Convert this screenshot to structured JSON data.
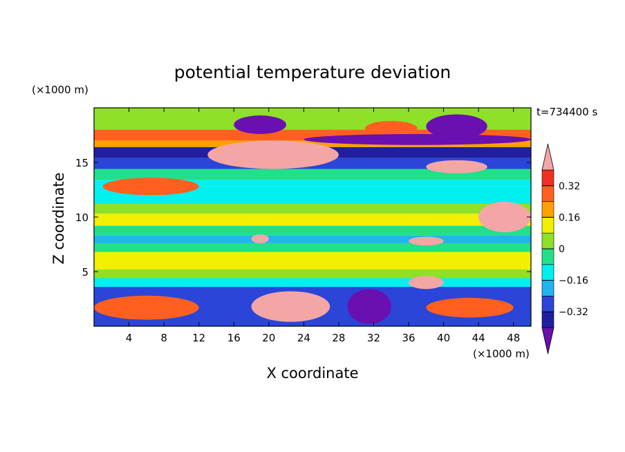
{
  "chart_data": {
    "type": "heatmap",
    "title": "potential temperature deviation",
    "xlabel": "X coordinate",
    "ylabel": "Z coordinate",
    "x_unit": "(×1000 m)",
    "y_unit": "(×1000 m)",
    "time_label": "t=734400 s",
    "xlim": [
      0,
      50
    ],
    "ylim": [
      0,
      20
    ],
    "x_ticks": [
      4,
      8,
      12,
      16,
      20,
      24,
      28,
      32,
      36,
      40,
      44,
      48
    ],
    "y_ticks": [
      5,
      10,
      15
    ],
    "colorbar": {
      "labels": [
        "0.32",
        "0.16",
        "0",
        "-0.16",
        "-0.32"
      ],
      "label_values": [
        0.32,
        0.16,
        0,
        -0.16,
        -0.32
      ],
      "levels": [
        -0.4,
        -0.32,
        -0.24,
        -0.16,
        -0.08,
        0,
        0.08,
        0.16,
        0.24,
        0.32,
        0.4
      ],
      "colors": [
        "#6a0fb0",
        "#1f1fa0",
        "#2a45d8",
        "#20b4f0",
        "#00f0f0",
        "#22e08a",
        "#8ee028",
        "#f0f000",
        "#ffa000",
        "#ff6020",
        "#f03020",
        "#f4a6a6"
      ]
    },
    "bands": [
      {
        "z": [
          18,
          20
        ],
        "v": 0.06
      },
      {
        "z": [
          17,
          18
        ],
        "v": 0.28
      },
      {
        "z": [
          16.4,
          17
        ],
        "v": 0.2
      },
      {
        "z": [
          15.4,
          16.4
        ],
        "v": -0.38
      },
      {
        "z": [
          14.4,
          15.4
        ],
        "v": -0.26
      },
      {
        "z": [
          13.4,
          14.4
        ],
        "v": -0.04
      },
      {
        "z": [
          12.8,
          13.4
        ],
        "v": -0.09
      },
      {
        "z": [
          11.2,
          12.8
        ],
        "v": -0.1
      },
      {
        "z": [
          10.3,
          11.2
        ],
        "v": 0.04
      },
      {
        "z": [
          9.2,
          10.3
        ],
        "v": 0.09
      },
      {
        "z": [
          8.3,
          9.2
        ],
        "v": -0.04
      },
      {
        "z": [
          7.6,
          8.3
        ],
        "v": -0.17
      },
      {
        "z": [
          6.8,
          7.6
        ],
        "v": -0.03
      },
      {
        "z": [
          5.2,
          6.8
        ],
        "v": 0.09
      },
      {
        "z": [
          4.4,
          5.2
        ],
        "v": 0.02
      },
      {
        "z": [
          3.6,
          4.4
        ],
        "v": -0.1
      },
      {
        "z": [
          0,
          3.6
        ],
        "v": -0.27
      }
    ],
    "features": [
      {
        "x": [
          13,
          28
        ],
        "z": [
          14.4,
          17.0
        ],
        "v": 0.42
      },
      {
        "x": [
          16,
          22
        ],
        "z": [
          17.6,
          19.3
        ],
        "v": -0.42
      },
      {
        "x": [
          31,
          37
        ],
        "z": [
          17.4,
          18.8
        ],
        "v": 0.3
      },
      {
        "x": [
          38,
          45
        ],
        "z": [
          17.2,
          19.4
        ],
        "v": -0.42
      },
      {
        "x": [
          24,
          50
        ],
        "z": [
          16.6,
          17.6
        ],
        "v": -0.42
      },
      {
        "x": [
          18,
          27
        ],
        "z": [
          0.4,
          3.2
        ],
        "v": 0.42
      },
      {
        "x": [
          29,
          34
        ],
        "z": [
          0.2,
          3.4
        ],
        "v": -0.42
      },
      {
        "x": [
          0,
          12
        ],
        "z": [
          0.6,
          2.8
        ],
        "v": 0.28
      },
      {
        "x": [
          38,
          48
        ],
        "z": [
          0.8,
          2.6
        ],
        "v": 0.3
      },
      {
        "x": [
          36,
          40
        ],
        "z": [
          3.4,
          4.6
        ],
        "v": 0.42
      },
      {
        "x": [
          38,
          45
        ],
        "z": [
          14.0,
          15.2
        ],
        "v": 0.42
      },
      {
        "x": [
          44,
          50
        ],
        "z": [
          8.6,
          11.4
        ],
        "v": 0.42
      },
      {
        "x": [
          18,
          20
        ],
        "z": [
          7.6,
          8.4
        ],
        "v": 0.42
      },
      {
        "x": [
          36,
          40
        ],
        "z": [
          7.4,
          8.2
        ],
        "v": 0.42
      },
      {
        "x": [
          1,
          12
        ],
        "z": [
          12.0,
          13.6
        ],
        "v": 0.3
      }
    ]
  }
}
